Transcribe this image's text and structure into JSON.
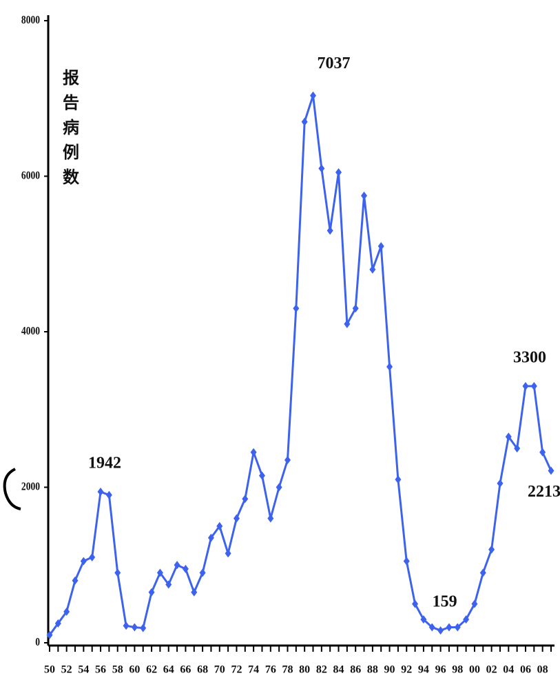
{
  "chart_data": {
    "type": "line",
    "y_label": "报告病例数",
    "categories": [
      "50",
      null,
      "52",
      null,
      "54",
      null,
      "56",
      null,
      "58",
      null,
      "60",
      null,
      "62",
      null,
      "64",
      null,
      "66",
      null,
      "68",
      null,
      "70",
      null,
      "72",
      null,
      "74",
      null,
      "76",
      null,
      "78",
      null,
      "80",
      null,
      "82",
      null,
      "84",
      null,
      "86",
      null,
      "88",
      null,
      "90",
      null,
      "92",
      null,
      "94",
      null,
      "96",
      null,
      "98",
      null,
      "00",
      null,
      "02",
      null,
      "04",
      null,
      "06",
      null,
      "08",
      null
    ],
    "series": [
      {
        "name": null,
        "color": "#3d63ee",
        "values": [
          100,
          250,
          400,
          800,
          1050,
          1100,
          1942,
          1900,
          900,
          220,
          200,
          190,
          650,
          900,
          750,
          1000,
          950,
          650,
          900,
          1350,
          1500,
          1150,
          1600,
          1850,
          2450,
          2150,
          1600,
          2000,
          2350,
          4300,
          6700,
          7037,
          6100,
          5300,
          6050,
          4100,
          4300,
          5750,
          4800,
          5100,
          3550,
          2100,
          1050,
          500,
          300,
          200,
          159,
          200,
          200,
          300,
          500,
          900,
          1200,
          2050,
          2650,
          2500,
          3300,
          3300,
          2450,
          2213
        ],
        "value_labels": [
          null,
          null,
          null,
          null,
          null,
          null,
          "1942",
          null,
          null,
          null,
          null,
          null,
          null,
          null,
          null,
          null,
          null,
          null,
          null,
          null,
          null,
          null,
          null,
          null,
          null,
          null,
          null,
          null,
          null,
          null,
          null,
          "7037",
          null,
          null,
          null,
          null,
          null,
          null,
          null,
          null,
          null,
          null,
          null,
          null,
          null,
          null,
          "159",
          null,
          null,
          null,
          null,
          null,
          null,
          null,
          null,
          null,
          "3300",
          null,
          null,
          "2213"
        ]
      }
    ],
    "ylim": [
      0,
      8000
    ],
    "yticks": [
      0,
      2000,
      4000,
      6000,
      8000
    ],
    "grid": false
  }
}
